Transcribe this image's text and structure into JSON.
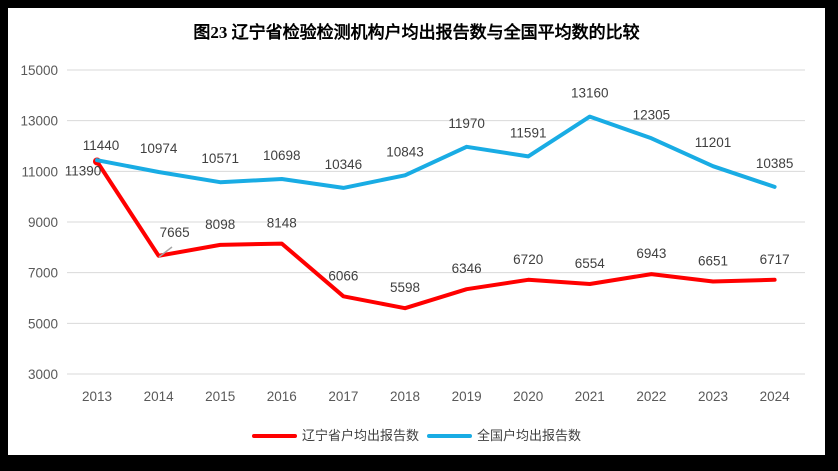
{
  "title": "图23 辽宁省检验检测机构户均出报告数与全国平均数的比较",
  "chart_data": {
    "type": "line",
    "x": [
      "2013",
      "2014",
      "2015",
      "2016",
      "2017",
      "2018",
      "2019",
      "2020",
      "2021",
      "2022",
      "2023",
      "2024"
    ],
    "series": [
      {
        "name": "辽宁省户均出报告数",
        "color": "#FF0000",
        "values": [
          11390,
          7665,
          8098,
          8148,
          6066,
          5598,
          6346,
          6720,
          6554,
          6943,
          6651,
          6717
        ]
      },
      {
        "name": "全国户均出报告数",
        "color": "#19ACE4",
        "values": [
          11440,
          10974,
          10571,
          10698,
          10346,
          10843,
          11970,
          11591,
          13160,
          12305,
          11201,
          10385
        ]
      }
    ],
    "xlabel": "",
    "ylabel": "",
    "ylim": [
      3000,
      15000
    ],
    "yticks": [
      15000,
      13000,
      11000,
      9000,
      7000,
      5000,
      3000
    ],
    "grid": true,
    "data_labels": true,
    "legend_position": "bottom"
  },
  "colors": {
    "grid": "#D9D9D9",
    "axis_text": "#595959",
    "data_label": "#404040",
    "leader_line": "#A6A6A6",
    "frame": "#000000",
    "background": "#FFFFFF"
  }
}
